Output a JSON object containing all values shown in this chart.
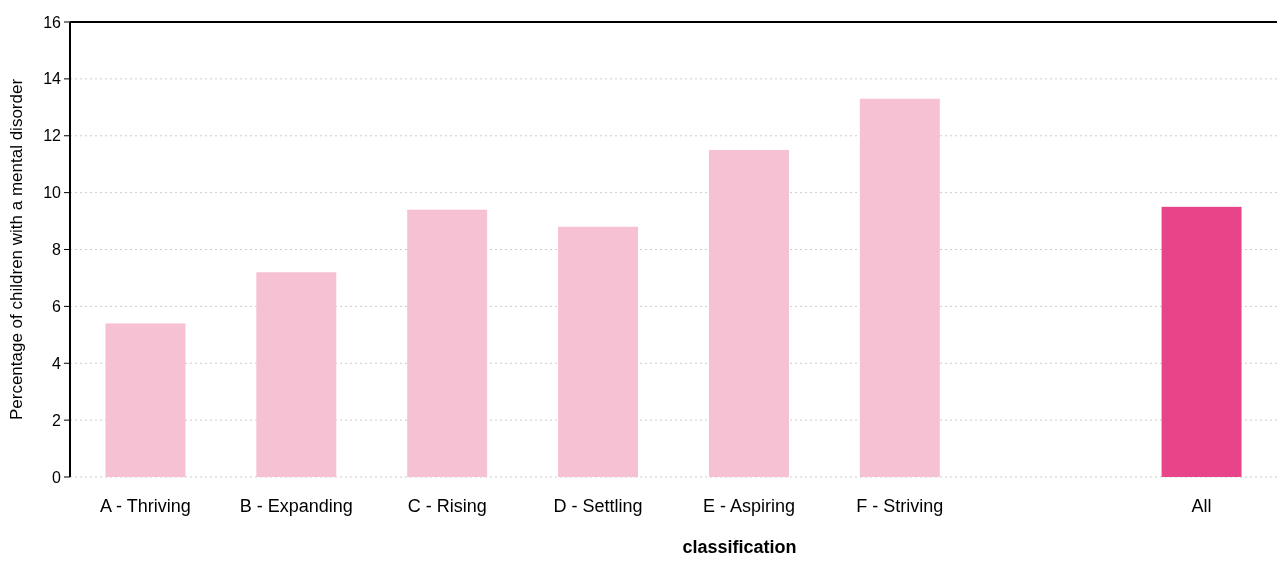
{
  "chart_data": {
    "type": "bar",
    "xlabel": "classification",
    "ylabel": "Percentage of children with a mental disorder",
    "categories": [
      "A - Thriving",
      "B - Expanding",
      "C - Rising",
      "D - Settling",
      "E - Aspiring",
      "F - Striving",
      null,
      "All"
    ],
    "values": [
      5.4,
      7.2,
      9.4,
      8.8,
      11.5,
      13.3,
      null,
      9.5
    ],
    "colors": [
      "#f6c1d2",
      "#f6c1d2",
      "#f6c1d2",
      "#f6c1d2",
      "#f6c1d2",
      "#f6c1d2",
      null,
      "#e8448a"
    ],
    "ylim": [
      0,
      16
    ],
    "yticks": [
      0,
      2,
      4,
      6,
      8,
      10,
      12,
      14,
      16
    ],
    "grid": "y"
  }
}
